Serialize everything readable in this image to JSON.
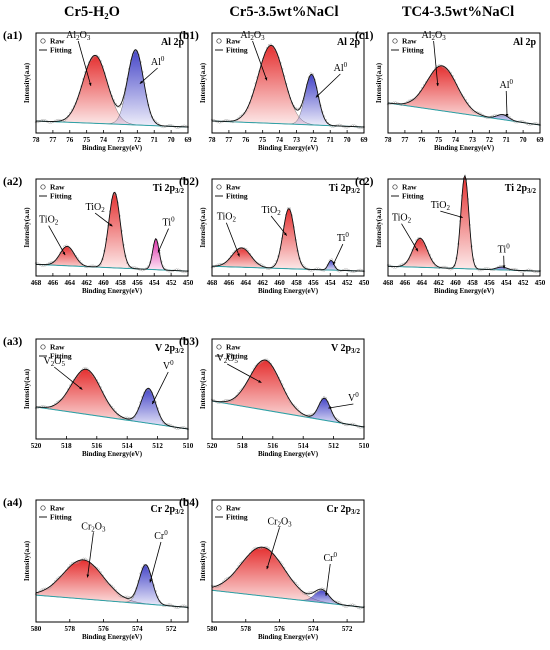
{
  "column_titles": [
    "Cr5-H₂O",
    "Cr5-3.5wt%NaCl",
    "TC4-3.5wt%NaCl"
  ],
  "legend": {
    "raw": "Raw",
    "fit": "Fitting"
  },
  "colors": {
    "oxide_fill": "#e53030",
    "metal_fill": "#4646c8",
    "metal_fill_pink": "#e02dab",
    "background_line": "#2fa3a8",
    "envelope_line": "#101010",
    "raw_marker": "#9a9a9a"
  },
  "chart_data": [
    {
      "type": "line",
      "panel": "(a1)",
      "element": "Al 2p",
      "xlabel": "Binding Energy(eV)",
      "ylabel": "Intensity(a.u)",
      "xlim": [
        78,
        69
      ],
      "xticks": [
        78,
        77,
        76,
        75,
        74,
        73,
        72,
        71,
        70,
        69
      ],
      "series": [
        {
          "name": "Al₂O₃",
          "center": 74.5,
          "height": 0.68,
          "fwhm": 1.7
        },
        {
          "name": "Al⁰",
          "center": 72.1,
          "height": 0.75,
          "fwhm": 1.1
        }
      ],
      "labels": [
        {
          "series": "Al₂O₃",
          "text": "Al₂O₃",
          "x": 75.5,
          "y": 0.95
        },
        {
          "series": "Al⁰",
          "text": "Al⁰",
          "x": 70.8,
          "y": 0.68
        }
      ]
    },
    {
      "type": "line",
      "panel": "(b1)",
      "element": "Al 2p",
      "xlabel": "Binding Energy(eV)",
      "ylabel": "Intensity(a.u)",
      "xlim": [
        78,
        69
      ],
      "xticks": [
        78,
        77,
        76,
        75,
        74,
        73,
        72,
        71,
        70,
        69
      ],
      "series": [
        {
          "name": "Al₂O₃",
          "center": 74.5,
          "height": 0.78,
          "fwhm": 1.8
        },
        {
          "name": "Al⁰",
          "center": 72.1,
          "height": 0.5,
          "fwhm": 0.9
        }
      ],
      "labels": [
        {
          "series": "Al₂O₃",
          "text": "Al₂O₃",
          "x": 75.6,
          "y": 0.95
        },
        {
          "series": "Al⁰",
          "text": "Al⁰",
          "x": 70.4,
          "y": 0.62
        }
      ]
    },
    {
      "type": "line",
      "panel": "(c1)",
      "element": "Al 2p",
      "xlabel": "Binding Energy(eV)",
      "ylabel": "Intensity(a.u)",
      "xlim": [
        78,
        69
      ],
      "xticks": [
        78,
        77,
        76,
        75,
        74,
        73,
        72,
        71,
        70,
        69
      ],
      "series": [
        {
          "name": "Al₂O₃",
          "center": 74.8,
          "height": 0.45,
          "fwhm": 2.1
        },
        {
          "name": "Al⁰",
          "center": 71.2,
          "height": 0.05,
          "fwhm": 0.8
        }
      ],
      "labels": [
        {
          "series": "Al₂O₃",
          "text": "Al₂O₃",
          "x": 75.3,
          "y": 0.95
        },
        {
          "series": "Al⁰",
          "text": "Al⁰",
          "x": 71.0,
          "y": 0.45
        }
      ]
    },
    {
      "type": "line",
      "panel": "(a2)",
      "element": "Ti 2p",
      "element_sub": "3/2",
      "xlabel": "Binding Energy(eV)",
      "ylabel": "Intensity(a.u)",
      "xlim": [
        468,
        450
      ],
      "xticks": [
        468,
        466,
        464,
        462,
        460,
        458,
        456,
        454,
        452,
        450
      ],
      "series": [
        {
          "name": "TiO₂",
          "center": 464.3,
          "height": 0.2,
          "fwhm": 2.0
        },
        {
          "name": "TiO₂",
          "center": 458.7,
          "height": 0.78,
          "fwhm": 1.6
        },
        {
          "name": "Ti⁰",
          "center": 453.8,
          "height": 0.32,
          "fwhm": 0.9
        }
      ],
      "labels": [
        {
          "series": "TiO₂ (464.3)",
          "text": "TiO₂",
          "x": 466.5,
          "y": 0.55
        },
        {
          "series": "TiO₂ (458.7)",
          "text": "TiO₂",
          "x": 461.0,
          "y": 0.68
        },
        {
          "series": "Ti⁰",
          "text": "Ti⁰",
          "x": 452.3,
          "y": 0.52
        }
      ]
    },
    {
      "type": "line",
      "panel": "(b2)",
      "element": "Ti 2p",
      "element_sub": "3/2",
      "xlabel": "Binding Energy(eV)",
      "ylabel": "Intensity(a.u)",
      "xlim": [
        468,
        450
      ],
      "xticks": [
        468,
        466,
        464,
        462,
        460,
        458,
        456,
        454,
        452,
        450
      ],
      "series": [
        {
          "name": "TiO₂",
          "center": 464.5,
          "height": 0.2,
          "fwhm": 2.6
        },
        {
          "name": "TiO₂",
          "center": 458.9,
          "height": 0.62,
          "fwhm": 1.6
        },
        {
          "name": "Ti⁰",
          "center": 453.9,
          "height": 0.1,
          "fwhm": 0.8
        }
      ],
      "labels": [
        {
          "series": "TiO₂ (464.5)",
          "text": "TiO₂",
          "x": 466.3,
          "y": 0.58
        },
        {
          "series": "TiO₂ (458.9)",
          "text": "TiO₂",
          "x": 461.0,
          "y": 0.65
        },
        {
          "series": "Ti⁰",
          "text": "Ti⁰",
          "x": 452.5,
          "y": 0.36
        }
      ]
    },
    {
      "type": "line",
      "panel": "(c2)",
      "element": "Ti 2p",
      "element_sub": "3/2",
      "xlabel": "Binding Energy(eV)",
      "ylabel": "Intensity(a.u)",
      "xlim": [
        468,
        450
      ],
      "xticks": [
        468,
        466,
        464,
        462,
        460,
        458,
        456,
        454,
        452,
        450
      ],
      "series": [
        {
          "name": "TiO₂",
          "center": 464.2,
          "height": 0.3,
          "fwhm": 2.0
        },
        {
          "name": "TiO₂",
          "center": 458.9,
          "height": 0.96,
          "fwhm": 1.1
        },
        {
          "name": "Ti⁰",
          "center": 454.5,
          "height": 0.03,
          "fwhm": 1.5
        }
      ],
      "labels": [
        {
          "series": "TiO₂ (464.2)",
          "text": "TiO₂",
          "x": 466.4,
          "y": 0.57
        },
        {
          "series": "TiO₂ (458.9)",
          "text": "TiO₂",
          "x": 461.8,
          "y": 0.7
        },
        {
          "series": "Ti⁰",
          "text": "Ti⁰",
          "x": 454.3,
          "y": 0.24
        }
      ]
    },
    {
      "type": "line",
      "panel": "(a3)",
      "element": "V 2p",
      "element_sub": "3/2",
      "xlabel": "Binding Energy(eV)",
      "ylabel": "Intensity(a.u)",
      "xlim": [
        520,
        510
      ],
      "xticks": [
        520,
        518,
        516,
        514,
        512,
        510
      ],
      "series": [
        {
          "name": "V₂O₅",
          "center": 516.7,
          "height": 0.45,
          "fwhm": 2.3
        },
        {
          "name": "V⁰",
          "center": 512.6,
          "height": 0.35,
          "fwhm": 1.1
        }
      ],
      "labels": [
        {
          "series": "V₂O₅",
          "text": "V₂O₅",
          "x": 518.8,
          "y": 0.75
        },
        {
          "series": "V⁰",
          "text": "V⁰",
          "x": 511.3,
          "y": 0.7
        }
      ]
    },
    {
      "type": "line",
      "panel": "(b3)",
      "element": "V 2p",
      "element_sub": "3/2",
      "xlabel": "Binding Energy(eV)",
      "ylabel": "Intensity(a.u)",
      "xlim": [
        520,
        510
      ],
      "xticks": [
        520,
        518,
        516,
        514,
        512,
        510
      ],
      "series": [
        {
          "name": "V₂O₅",
          "center": 516.5,
          "height": 0.5,
          "fwhm": 2.4
        },
        {
          "name": "V⁰",
          "center": 512.6,
          "height": 0.22,
          "fwhm": 0.9
        }
      ],
      "labels": [
        {
          "series": "V₂O₅",
          "text": "V₂O₅",
          "x": 519.0,
          "y": 0.78
        },
        {
          "series": "V⁰",
          "text": "V⁰",
          "x": 510.7,
          "y": 0.38
        }
      ]
    },
    {
      "type": "line",
      "panel": "(a4)",
      "element": "Cr 2p",
      "element_sub": "3/2",
      "xlabel": "Binding Energy(eV)",
      "ylabel": "Intensity(a.u)",
      "xlim": [
        580,
        571
      ],
      "xticks": [
        580,
        578,
        576,
        574,
        572
      ],
      "series": [
        {
          "name": "Cr₂O₃",
          "center": 577.2,
          "height": 0.32,
          "fwhm": 2.8
        },
        {
          "name": "Cr⁰",
          "center": 573.5,
          "height": 0.32,
          "fwhm": 0.9
        }
      ],
      "labels": [
        {
          "series": "Cr₂O₃",
          "text": "Cr₂O₃",
          "x": 576.6,
          "y": 0.76
        },
        {
          "series": "Cr⁰",
          "text": "Cr⁰",
          "x": 572.6,
          "y": 0.68
        }
      ]
    },
    {
      "type": "line",
      "panel": "(b4)",
      "element": "Cr 2p",
      "element_sub": "3/2",
      "xlabel": "Binding Energy(eV)",
      "ylabel": "Intensity(a.u)",
      "xlim": [
        580,
        571
      ],
      "xticks": [
        580,
        578,
        576,
        574,
        572
      ],
      "series": [
        {
          "name": "Cr₂O₃",
          "center": 577.0,
          "height": 0.4,
          "fwhm": 3.0
        },
        {
          "name": "Cr⁰",
          "center": 573.5,
          "height": 0.1,
          "fwhm": 1.0
        }
      ],
      "labels": [
        {
          "series": "Cr₂O₃",
          "text": "Cr₂O₃",
          "x": 576.0,
          "y": 0.8
        },
        {
          "series": "Cr⁰",
          "text": "Cr⁰",
          "x": 573.0,
          "y": 0.5
        }
      ]
    }
  ]
}
